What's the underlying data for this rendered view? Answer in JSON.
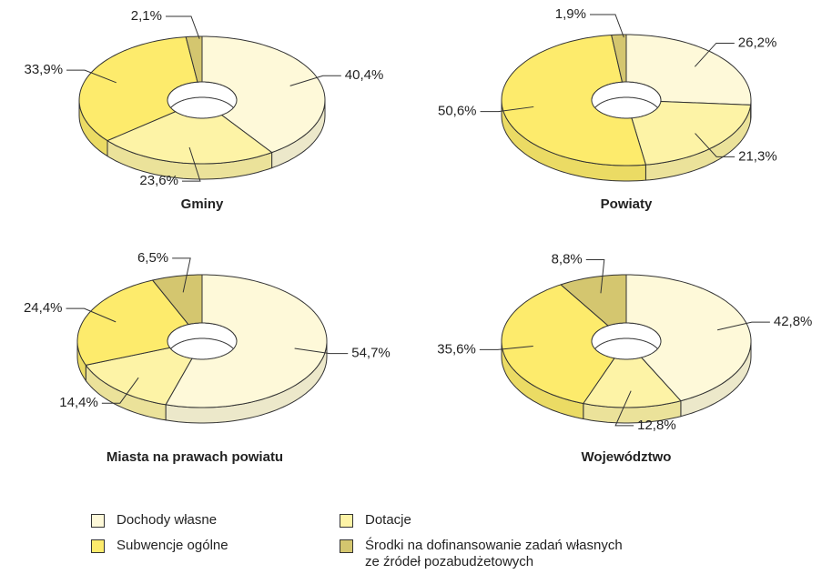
{
  "chart_data": [
    {
      "type": "donut",
      "title": "Gminy",
      "values": [
        40.4,
        23.6,
        33.9,
        2.1
      ],
      "value_labels": [
        "40,4%",
        "23,6%",
        "33,9%",
        "2,1%"
      ]
    },
    {
      "type": "donut",
      "title": "Powiaty",
      "values": [
        26.2,
        21.3,
        50.6,
        1.9
      ],
      "value_labels": [
        "26,2%",
        "21,3%",
        "50,6%",
        "1,9%"
      ]
    },
    {
      "type": "donut",
      "title": "Miasta na prawach powiatu",
      "values": [
        54.7,
        14.4,
        24.4,
        6.5
      ],
      "value_labels": [
        "54,7%",
        "14,4%",
        "24,4%",
        "6,5%"
      ]
    },
    {
      "type": "donut",
      "title": "Województwo",
      "values": [
        42.8,
        12.8,
        35.6,
        8.8
      ],
      "value_labels": [
        "42,8%",
        "12,8%",
        "35,6%",
        "8,8%"
      ]
    }
  ],
  "legend": {
    "labels": [
      "Dochody własne",
      "Dotacje",
      "Subwencje ogólne",
      "Środki na dofinansowanie zadań własnych ze źródeł pozabudżetowych"
    ],
    "colors": [
      "#fef9d9",
      "#fdf3a6",
      "#fdeb6c",
      "#d4c66f"
    ]
  }
}
